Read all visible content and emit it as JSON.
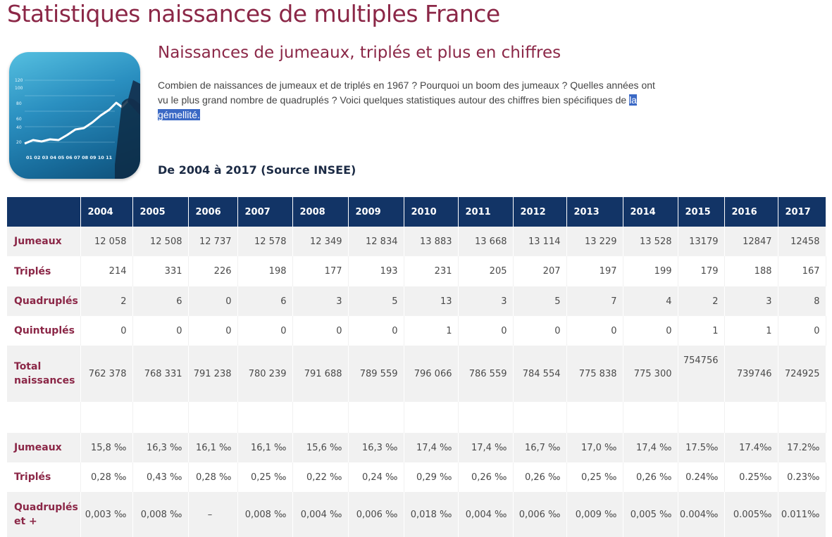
{
  "page": {
    "title": "Statistiques naissances de multiples France",
    "subtitle": "Naissances de jumeaux, triplés et plus en chiffres",
    "intro_text": "Combien de naissances de jumeaux et de triplés en 1967 ? Pourquoi un boom des jumeaux ? Quelles années ont vu le plus grand nombre de quadruplés ? Voici quelques statistiques autour des chiffres bien spécifiques de ",
    "intro_highlight": "la gémellité.",
    "section_heading": "De 2004 à 2017 (Source INSEE)"
  },
  "hero_image": {
    "icon": "line-chart-icon",
    "y_ticks": [
      "120",
      "100",
      "80",
      "60",
      "40",
      "20"
    ],
    "x_ticks": "01 02 03 04 05 06 07 08 09 10 11"
  },
  "table": {
    "years": [
      "2004",
      "2005",
      "2006",
      "2007",
      "2008",
      "2009",
      "2010",
      "2011",
      "2012",
      "2013",
      "2014",
      "2015",
      "2016",
      "2017"
    ],
    "rows": [
      {
        "label": "Jumeaux",
        "values": [
          "12 058",
          "12 508",
          "12 737",
          "12 578",
          "12 349",
          "12 834",
          "13 883",
          "13 668",
          "13 114",
          "13 229",
          "13 528",
          "13179",
          "12847",
          "12458"
        ]
      },
      {
        "label": "Triplés",
        "values": [
          "214",
          "331",
          "226",
          "198",
          "177",
          "193",
          "231",
          "205",
          "207",
          "197",
          "199",
          "179",
          "188",
          "167"
        ]
      },
      {
        "label": "Quadruplés",
        "values": [
          "2",
          "6",
          "0",
          "6",
          "3",
          "5",
          "13",
          "3",
          "5",
          "7",
          "4",
          "2",
          "3",
          "8"
        ]
      },
      {
        "label": "Quintuplés",
        "values": [
          "0",
          "0",
          "0",
          "0",
          "0",
          "0",
          "1",
          "0",
          "0",
          "0",
          "0",
          "1",
          "1",
          "0"
        ]
      },
      {
        "label": "Total naissances",
        "values": [
          "762 378",
          "768 331",
          "791 238",
          "780 239",
          "791 688",
          "789 559",
          "796 066",
          "786 559",
          "784 554",
          "775 838",
          "775 300",
          "754756",
          "739746",
          "724925"
        ]
      }
    ],
    "rate_rows": [
      {
        "label": "Jumeaux",
        "values": [
          "15,8 ‰",
          "16,3 ‰",
          "16,1 ‰",
          "16,1 ‰",
          "15,6 ‰",
          "16,3 ‰",
          "17,4 ‰",
          "17,4 ‰",
          "16,7 ‰",
          "17,0 ‰",
          "17,4 ‰",
          "17.5‰",
          "17.4‰",
          "17.2‰"
        ]
      },
      {
        "label": "Triplés",
        "values": [
          "0,28 ‰",
          "0,43 ‰",
          "0,28 ‰",
          "0,25 ‰",
          "0,22 ‰",
          "0,24 ‰",
          "0,29 ‰",
          "0,26 ‰",
          "0,26 ‰",
          "0,25 ‰",
          "0,26 ‰",
          "0.24‰",
          "0.25‰",
          "0.23‰"
        ]
      },
      {
        "label": "Quadruplés et +",
        "values": [
          "0,003 ‰",
          "0,008 ‰",
          "–",
          "0,008 ‰",
          "0,004 ‰",
          "0,006 ‰",
          "0,018 ‰",
          "0,004 ‰",
          "0,006 ‰",
          "0,009 ‰",
          "0,005 ‰",
          "0.004‰",
          "0.005‰",
          "0.011‰"
        ]
      }
    ]
  }
}
